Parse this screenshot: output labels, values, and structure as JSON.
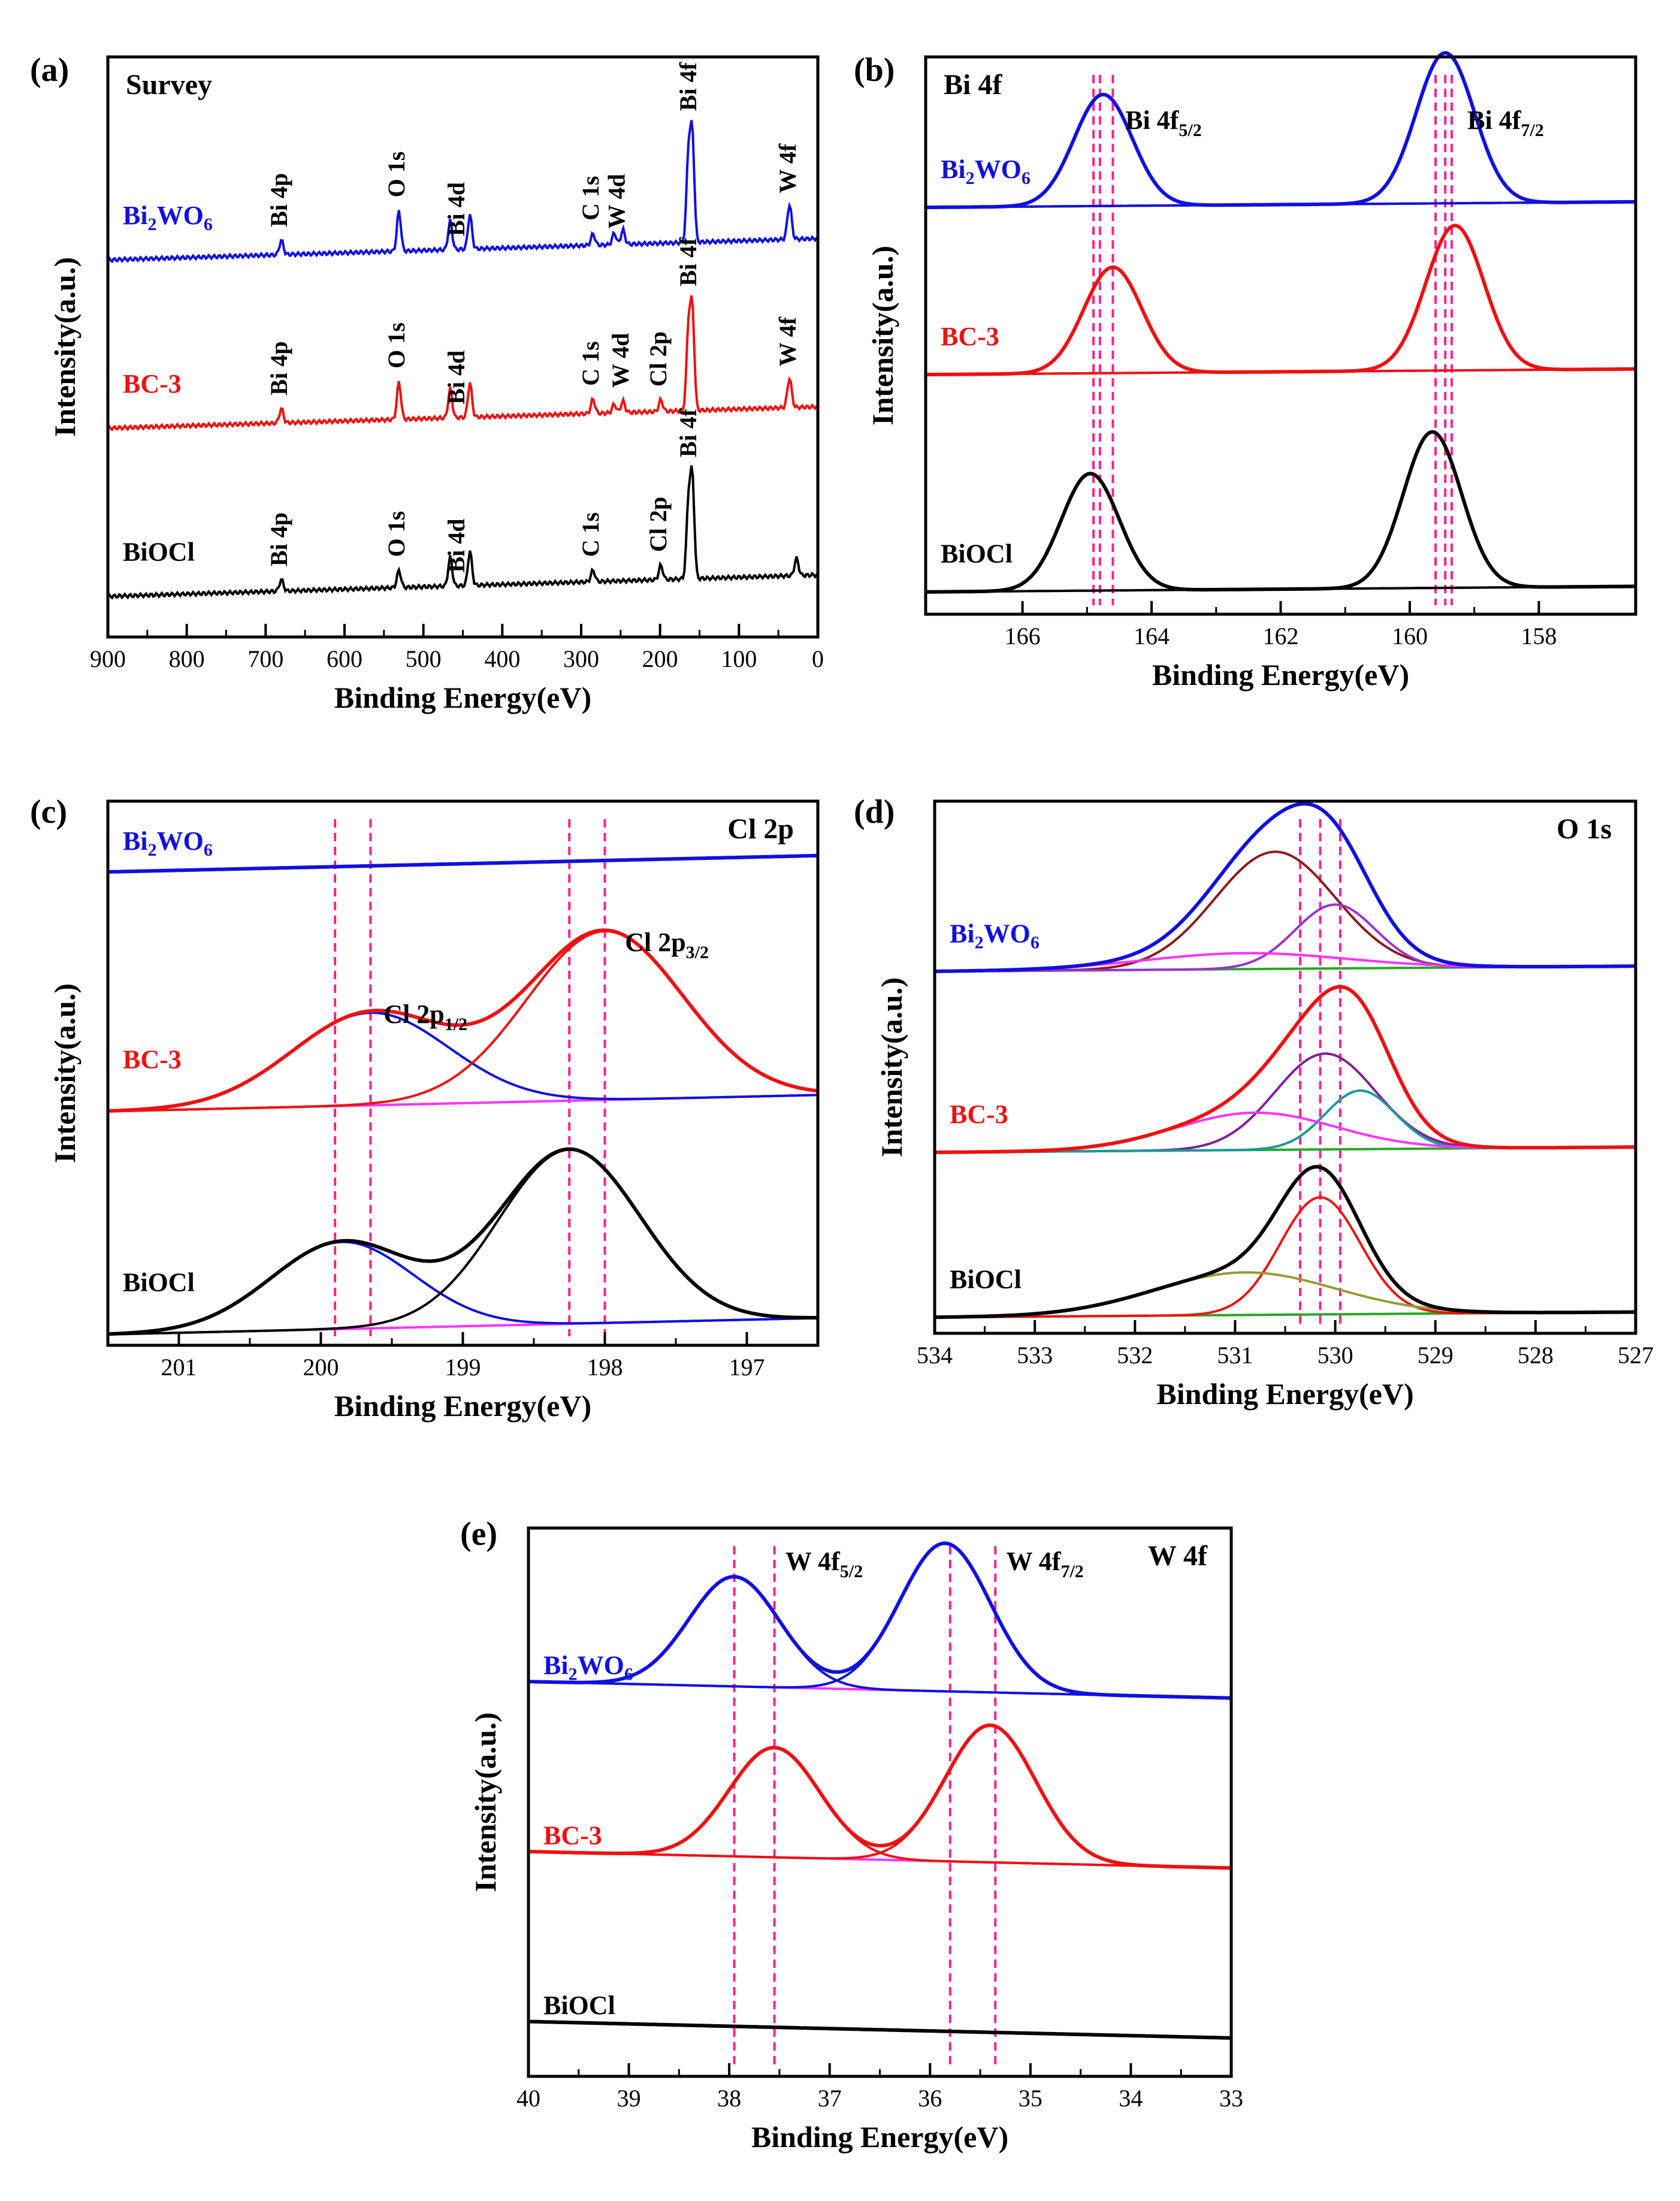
{
  "chart_data": [
    {
      "panel": "(a)",
      "type": "line",
      "title": "Survey",
      "xlabel": "Binding Energy(eV)",
      "ylabel": "Intensity(a.u.)",
      "xlim": [
        900,
        0
      ],
      "xticks": [
        900,
        800,
        700,
        600,
        500,
        400,
        300,
        200,
        100,
        0
      ],
      "series": [
        {
          "name": "Bi2WO6",
          "label_main": "Bi",
          "label_sub": "2",
          "label_mid": "WO",
          "label_sub2": "6",
          "color": "#1010e0",
          "offset": 0.66,
          "peaks": [
            {
              "x": 680,
              "h": 0.025
            },
            {
              "x": 531,
              "h": 0.07
            },
            {
              "x": 466,
              "h": 0.05
            },
            {
              "x": 441,
              "h": 0.06
            },
            {
              "x": 285,
              "h": 0.02
            },
            {
              "x": 258,
              "h": 0.02
            },
            {
              "x": 247,
              "h": 0.025
            },
            {
              "x": 164,
              "h": 0.15
            },
            {
              "x": 159,
              "h": 0.18
            },
            {
              "x": 37,
              "h": 0.03
            },
            {
              "x": 35,
              "h": 0.035
            }
          ],
          "annotations": [
            {
              "x": 680,
              "text": "Bi 4p"
            },
            {
              "x": 531,
              "text": "O 1s"
            },
            {
              "x": 455,
              "text": "Bi 4d"
            },
            {
              "x": 285,
              "text": "C 1s"
            },
            {
              "x": 252,
              "text": "W 4d"
            },
            {
              "x": 161,
              "text": "Bi 4f"
            },
            {
              "x": 35,
              "text": "W 4f"
            }
          ]
        },
        {
          "name": "BC-3",
          "color": "#ee1111",
          "offset": 0.37,
          "peaks": [
            {
              "x": 680,
              "h": 0.025
            },
            {
              "x": 531,
              "h": 0.065
            },
            {
              "x": 466,
              "h": 0.05
            },
            {
              "x": 441,
              "h": 0.06
            },
            {
              "x": 285,
              "h": 0.025
            },
            {
              "x": 258,
              "h": 0.015
            },
            {
              "x": 247,
              "h": 0.02
            },
            {
              "x": 199,
              "h": 0.02
            },
            {
              "x": 164,
              "h": 0.14
            },
            {
              "x": 159,
              "h": 0.17
            },
            {
              "x": 37,
              "h": 0.025
            },
            {
              "x": 35,
              "h": 0.03
            }
          ],
          "annotations": [
            {
              "x": 680,
              "text": "Bi 4p"
            },
            {
              "x": 531,
              "text": "O 1s"
            },
            {
              "x": 455,
              "text": "Bi 4d"
            },
            {
              "x": 285,
              "text": "C 1s"
            },
            {
              "x": 247,
              "text": "W 4d"
            },
            {
              "x": 199,
              "text": "Cl 2p"
            },
            {
              "x": 161,
              "text": "Bi 4f"
            },
            {
              "x": 35,
              "text": "W 4f"
            }
          ]
        },
        {
          "name": "BiOCl",
          "color": "#000000",
          "offset": 0.08,
          "peaks": [
            {
              "x": 680,
              "h": 0.02
            },
            {
              "x": 531,
              "h": 0.03
            },
            {
              "x": 466,
              "h": 0.05
            },
            {
              "x": 441,
              "h": 0.06
            },
            {
              "x": 285,
              "h": 0.02
            },
            {
              "x": 199,
              "h": 0.025
            },
            {
              "x": 164,
              "h": 0.13
            },
            {
              "x": 159,
              "h": 0.17
            },
            {
              "x": 27,
              "h": 0.03
            }
          ],
          "annotations": [
            {
              "x": 680,
              "text": "Bi 4p"
            },
            {
              "x": 531,
              "text": "O 1s"
            },
            {
              "x": 455,
              "text": "Bi 4d"
            },
            {
              "x": 285,
              "text": "C 1s"
            },
            {
              "x": 199,
              "text": "Cl 2p"
            },
            {
              "x": 161,
              "text": "Bi 4f"
            }
          ]
        }
      ]
    },
    {
      "panel": "(b)",
      "type": "line",
      "title": "Bi 4f",
      "xlabel": "Binding Energy(eV)",
      "ylabel": "Intensity(a.u.)",
      "xlim": [
        167.5,
        156.5
      ],
      "xticks": [
        166,
        164,
        162,
        160,
        158
      ],
      "annotations": [
        {
          "x": 164.5,
          "main": "Bi 4f",
          "sub": "5/2"
        },
        {
          "x": 159.2,
          "main": "Bi 4f",
          "sub": "7/2"
        }
      ],
      "ref_lines": [
        164.9,
        164.8,
        164.6,
        159.6,
        159.45,
        159.35
      ],
      "series": [
        {
          "name": "Bi2WO6",
          "color": "#1010e0",
          "offset": 0.74,
          "peaks": [
            {
              "x": 164.75,
              "h": 0.2,
              "w": 0.45
            },
            {
              "x": 159.45,
              "h": 0.27,
              "w": 0.45
            }
          ],
          "background": "#8b1a1a"
        },
        {
          "name": "BC-3",
          "color": "#ee1111",
          "offset": 0.44,
          "peaks": [
            {
              "x": 164.6,
              "h": 0.19,
              "w": 0.45
            },
            {
              "x": 159.3,
              "h": 0.26,
              "w": 0.45
            }
          ],
          "background": "#ff33ff"
        },
        {
          "name": "BiOCl",
          "color": "#000000",
          "offset": 0.05,
          "peaks": [
            {
              "x": 164.95,
              "h": 0.21,
              "w": 0.45
            },
            {
              "x": 159.65,
              "h": 0.28,
              "w": 0.45
            }
          ],
          "background": "#ff33ff"
        }
      ]
    },
    {
      "panel": "(c)",
      "type": "line",
      "title": "Cl 2p",
      "xlabel": "Binding Energy(eV)",
      "ylabel": "Intensity(a.u.)",
      "xlim": [
        201.5,
        196.5
      ],
      "xticks": [
        201,
        200,
        199,
        198,
        197
      ],
      "annotations": [
        {
          "x": 199.6,
          "main": "Cl 2p",
          "sub": "1/2"
        },
        {
          "x": 197.9,
          "main": "Cl 2p",
          "sub": "3/2"
        }
      ],
      "ref_lines": [
        199.9,
        199.65,
        198.25,
        198.0
      ],
      "series": [
        {
          "name": "Bi2WO6",
          "color": "#1010e0",
          "offset": 0.9,
          "peaks": [],
          "background": "#1010e0"
        },
        {
          "name": "BC-3",
          "color": "#ee1111",
          "offset": 0.46,
          "peaks": [
            {
              "x": 199.65,
              "h": 0.17,
              "w": 0.55
            },
            {
              "x": 198.0,
              "h": 0.31,
              "w": 0.55
            }
          ],
          "background": "#ff33ff"
        },
        {
          "name": "BiOCl",
          "color": "#000000",
          "offset": 0.05,
          "peaks": [
            {
              "x": 199.85,
              "h": 0.16,
              "w": 0.5
            },
            {
              "x": 198.25,
              "h": 0.32,
              "w": 0.5
            }
          ],
          "background": "#ff33ff"
        }
      ]
    },
    {
      "panel": "(d)",
      "type": "line",
      "title": "O 1s",
      "xlabel": "Binding Energy(eV)",
      "ylabel": "Intensity(a.u.)",
      "xlim": [
        534,
        527
      ],
      "xticks": [
        534,
        533,
        532,
        531,
        530,
        529,
        528,
        527
      ],
      "ref_lines": [
        530.35,
        530.15,
        529.95
      ],
      "series": [
        {
          "name": "Bi2WO6",
          "color": "#1010e0",
          "offset": 0.69,
          "components": [
            {
              "x": 530.6,
              "h": 0.22,
              "w": 0.6,
              "color": "#8b1a1a"
            },
            {
              "x": 530.0,
              "h": 0.12,
              "w": 0.4,
              "color": "#9933cc"
            },
            {
              "x": 530.9,
              "h": 0.03,
              "w": 1.0,
              "color": "#ff33ff"
            }
          ]
        },
        {
          "name": "BC-3",
          "color": "#ee1111",
          "offset": 0.35,
          "components": [
            {
              "x": 530.1,
              "h": 0.18,
              "w": 0.5,
              "color": "#801f99"
            },
            {
              "x": 529.75,
              "h": 0.11,
              "w": 0.35,
              "color": "#1a9999"
            },
            {
              "x": 530.8,
              "h": 0.07,
              "w": 0.8,
              "color": "#ff33ff"
            }
          ]
        },
        {
          "name": "BiOCl",
          "color": "#000000",
          "offset": 0.04,
          "components": [
            {
              "x": 530.15,
              "h": 0.22,
              "w": 0.4,
              "color": "#ee1111"
            },
            {
              "x": 530.9,
              "h": 0.08,
              "w": 0.9,
              "color": "#999933"
            }
          ]
        }
      ]
    },
    {
      "panel": "(e)",
      "type": "line",
      "title": "W 4f",
      "xlabel": "Binding Energy(eV)",
      "ylabel": "Intensity(a.u.)",
      "xlim": [
        40,
        33
      ],
      "xticks": [
        40,
        39,
        38,
        37,
        36,
        35,
        34,
        33
      ],
      "annotations": [
        {
          "x": 37.5,
          "main": "W 4f",
          "sub": "5/2"
        },
        {
          "x": 35.3,
          "main": "W 4f",
          "sub": "7/2"
        }
      ],
      "ref_lines": [
        37.95,
        37.55,
        35.8,
        35.35
      ],
      "series": [
        {
          "name": "Bi2WO6",
          "color": "#1010e0",
          "offset": 0.69,
          "peaks": [
            {
              "x": 37.95,
              "h": 0.2,
              "w": 0.45
            },
            {
              "x": 35.85,
              "h": 0.27,
              "w": 0.45
            }
          ],
          "background": "#ff33ff"
        },
        {
          "name": "BC-3",
          "color": "#ee1111",
          "offset": 0.38,
          "peaks": [
            {
              "x": 37.55,
              "h": 0.2,
              "w": 0.45
            },
            {
              "x": 35.4,
              "h": 0.25,
              "w": 0.45
            }
          ],
          "background": "#ff33ff"
        },
        {
          "name": "BiOCl",
          "color": "#000000",
          "offset": 0.07,
          "peaks": [],
          "background": "#000000"
        }
      ]
    }
  ]
}
